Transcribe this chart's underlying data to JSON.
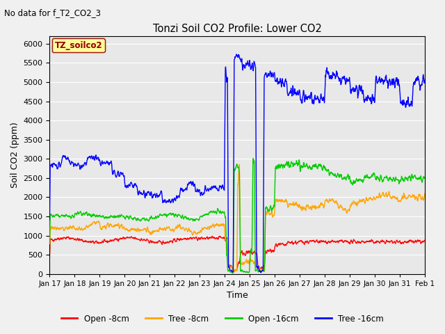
{
  "title": "Tonzi Soil CO2 Profile: Lower CO2",
  "subtitle": "No data for f_T2_CO2_3",
  "ylabel": "Soil CO2 (ppm)",
  "xlabel": "Time",
  "ylim": [
    0,
    6200
  ],
  "yticks": [
    0,
    500,
    1000,
    1500,
    2000,
    2500,
    3000,
    3500,
    4000,
    4500,
    5000,
    5500,
    6000
  ],
  "legend_label": "TZ_soilco2",
  "legend_entries": [
    "Open -8cm",
    "Tree -8cm",
    "Open -16cm",
    "Tree -16cm"
  ],
  "legend_colors": [
    "#ff0000",
    "#ffa500",
    "#00cc00",
    "#0000ff"
  ],
  "line_colors": {
    "open_8cm": "#ff0000",
    "tree_8cm": "#ffa500",
    "open_16cm": "#00cc00",
    "tree_16cm": "#0000ff"
  },
  "x_tick_labels": [
    "Jan 17",
    "Jan 18",
    "Jan 19",
    "Jan 20",
    "Jan 21",
    "Jan 22",
    "Jan 23",
    "Jan 24",
    "Jan 25",
    "Jan 26",
    "Jan 27",
    "Jan 28",
    "Jan 29",
    "Jan 30",
    "Jan 31",
    "Feb 1"
  ],
  "plot_bg_color": "#e8e8e8",
  "grid_color": "#ffffff",
  "fig_bg_color": "#f0f0f0"
}
